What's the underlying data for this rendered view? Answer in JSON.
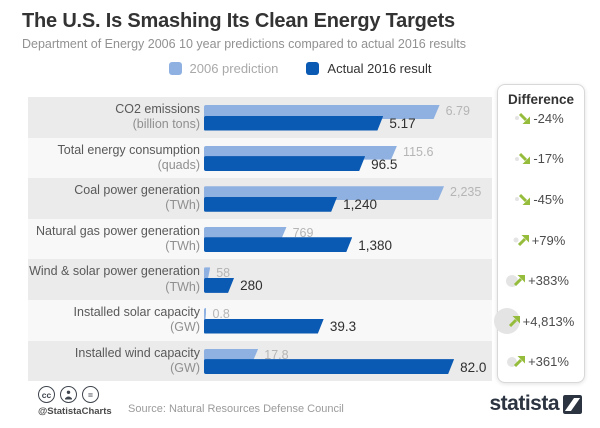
{
  "header": {
    "title": "The U.S. Is Smashing Its Clean Energy Targets",
    "subtitle": "Department of Energy 2006 10 year predictions compared to actual 2016 results"
  },
  "legend": [
    {
      "label": "2006 prediction",
      "color": "#8fb1e2",
      "text_color": "#a9a9a9"
    },
    {
      "label": "Actual 2016 result",
      "color": "#0a59b2",
      "text_color": "#333333"
    }
  ],
  "chart_data": {
    "type": "bar",
    "title": "The U.S. Is Smashing Its Clean Energy Targets",
    "subtitle": "Department of Energy 2006 10 year predictions compared to actual 2016 results",
    "series_names": [
      "2006 prediction",
      "Actual 2016 result"
    ],
    "difference_header": "Difference",
    "layout_hint": "horizontal paired bars, independent scale per unit, difference column on right",
    "rows": [
      {
        "label": "CO2 emissions",
        "unit": "(billion tons)",
        "prediction": 6.79,
        "actual": 5.17,
        "prediction_label": "6.79",
        "actual_label": "5.17",
        "difference": "-24%",
        "direction": "down"
      },
      {
        "label": "Total energy consumption",
        "unit": "(quads)",
        "prediction": 115.6,
        "actual": 96.5,
        "prediction_label": "115.6",
        "actual_label": "96.5",
        "difference": "-17%",
        "direction": "down"
      },
      {
        "label": "Coal power generation",
        "unit": "(TWh)",
        "prediction": 2235,
        "actual": 1240,
        "prediction_label": "2,235",
        "actual_label": "1,240",
        "difference": "-45%",
        "direction": "down"
      },
      {
        "label": "Natural gas power generation",
        "unit": "(TWh)",
        "prediction": 769,
        "actual": 1380,
        "prediction_label": "769",
        "actual_label": "1,380",
        "difference": "+79%",
        "direction": "up"
      },
      {
        "label": "Wind & solar power generation",
        "unit": "(TWh)",
        "prediction": 58,
        "actual": 280,
        "prediction_label": "58",
        "actual_label": "280",
        "difference": "+383%",
        "direction": "up"
      },
      {
        "label": "Installed solar capacity",
        "unit": "(GW)",
        "prediction": 0.8,
        "actual": 39.3,
        "prediction_label": "0.8",
        "actual_label": "39.3",
        "difference": "+4,813%",
        "direction": "up"
      },
      {
        "label": "Installed wind capacity",
        "unit": "(GW)",
        "prediction": 17.8,
        "actual": 82.0,
        "prediction_label": "17.8",
        "actual_label": "82.0",
        "difference": "+361%",
        "direction": "up"
      }
    ]
  },
  "colors": {
    "prediction_bar": "#8fb1e2",
    "actual_bar": "#0a59b2",
    "row_band_odd": "#ebebeb",
    "row_band_even": "#f8f8f8",
    "trend_arrow_green": "#96bc3c",
    "magnitude_dot": "#e4e4e4",
    "brand_navy": "#2b3440"
  },
  "footer": {
    "cc_icons": [
      "cc-icon",
      "attribution-person-icon",
      "equals-icon"
    ],
    "handle": "@StatistaCharts",
    "source": "Source: Natural Resources Defense Council",
    "brand": "statista"
  }
}
